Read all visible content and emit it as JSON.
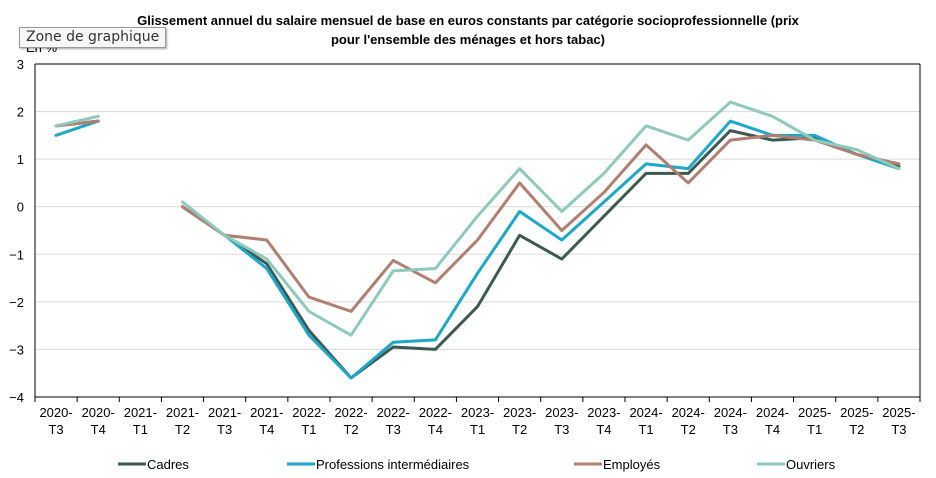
{
  "tooltip": {
    "label": "Zone de graphique"
  },
  "chart_data": {
    "type": "line",
    "title": "Glissement annuel du salaire mensuel de base en euros constants par catégorie socioprofessionnelle (prix pour l'ensemble des ménages et hors tabac)",
    "title_lines": [
      "Glissement annuel du salaire mensuel de base en euros constants par catégorie socioprofessionnelle (prix",
      "pour l'ensemble des ménages et hors tabac)"
    ],
    "ylabel": "En %",
    "ylim": [
      -4,
      3
    ],
    "yticks": [
      3,
      2,
      1,
      0,
      -1,
      -2,
      -3,
      -4
    ],
    "ytick_labels": [
      "3",
      "2",
      "1",
      "0",
      "−1",
      "−2",
      "−3",
      "−4"
    ],
    "grid": true,
    "legend_position": "bottom",
    "categories": [
      [
        "2020-",
        "T3"
      ],
      [
        "2020-",
        "T4"
      ],
      [
        "2021-",
        "T1"
      ],
      [
        "2021-",
        "T2"
      ],
      [
        "2021-",
        "T3"
      ],
      [
        "2021-",
        "T4"
      ],
      [
        "2022-",
        "T1"
      ],
      [
        "2022-",
        "T2"
      ],
      [
        "2022-",
        "T3"
      ],
      [
        "2022-",
        "T4"
      ],
      [
        "2023-",
        "T1"
      ],
      [
        "2023-",
        "T2"
      ],
      [
        "2023-",
        "T3"
      ],
      [
        "2023-",
        "T4"
      ],
      [
        "2024-",
        "T1"
      ],
      [
        "2024-",
        "T2"
      ],
      [
        "2024-",
        "T3"
      ],
      [
        "2024-",
        "T4"
      ],
      [
        "2025-",
        "T1"
      ],
      [
        "2025-",
        "T2"
      ],
      [
        "2025-",
        "T3"
      ]
    ],
    "series": [
      {
        "name": "Cadres",
        "color": "#3d5a50",
        "values": [
          1.7,
          1.8,
          null,
          0.0,
          -0.6,
          -1.2,
          -2.6,
          -3.6,
          -2.95,
          -3.0,
          -2.1,
          -0.6,
          -1.1,
          -0.2,
          0.7,
          0.7,
          1.6,
          1.4,
          1.45,
          1.1,
          0.85
        ]
      },
      {
        "name": "Professions intermédiaires",
        "color": "#1ea7c8",
        "values": [
          1.5,
          1.8,
          null,
          0.0,
          -0.6,
          -1.3,
          -2.7,
          -3.6,
          -2.85,
          -2.8,
          -1.4,
          -0.1,
          -0.7,
          0.1,
          0.9,
          0.8,
          1.8,
          1.5,
          1.5,
          1.1,
          0.8
        ]
      },
      {
        "name": "Employés",
        "color": "#b07f70",
        "values": [
          1.7,
          1.8,
          null,
          0.0,
          -0.6,
          -0.7,
          -1.9,
          -2.2,
          -1.13,
          -1.6,
          -0.7,
          0.5,
          -0.5,
          0.3,
          1.3,
          0.5,
          1.4,
          1.5,
          1.4,
          1.1,
          0.9
        ]
      },
      {
        "name": "Ouvriers",
        "color": "#8fc9bc",
        "values": [
          1.7,
          1.9,
          null,
          0.1,
          -0.6,
          -1.1,
          -2.2,
          -2.7,
          -1.35,
          -1.3,
          -0.2,
          0.8,
          -0.1,
          0.7,
          1.7,
          1.4,
          2.2,
          1.9,
          1.4,
          1.2,
          0.8
        ]
      }
    ]
  }
}
